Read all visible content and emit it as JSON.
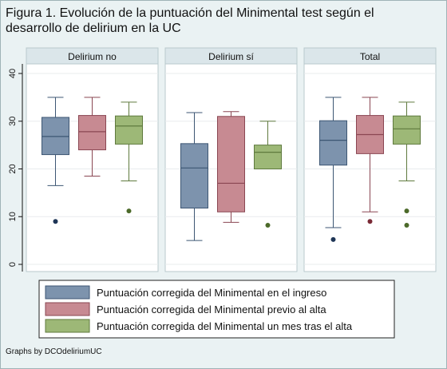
{
  "title_lines": [
    "Figura 1. Evolución de la puntuación del Minimental test según el",
    "desarrollo de delirium en la UC"
  ],
  "note": "Graphs by DCOdeliriumUC",
  "colors": {
    "page_bg": "#eaf2f3",
    "series": [
      "#7d93ad",
      "#c78a92",
      "#9db877"
    ],
    "box_edge": [
      "#3d5673",
      "#8a4652",
      "#5f7a3e"
    ],
    "outlier": [
      "#1e3556",
      "#7a2a36",
      "#4c6a2a"
    ]
  },
  "chart_data": {
    "type": "box",
    "title": "Figura 1. Evolución de la puntuación del Minimental test según el desarrollo de delirium en la UC",
    "xlabel": "",
    "ylabel": "",
    "ylim": [
      0,
      40
    ],
    "yticks": [
      0,
      10,
      20,
      30,
      40
    ],
    "grid": true,
    "legend_position": "bottom",
    "panels": [
      {
        "label": "Delirium no",
        "series": [
          {
            "name": "Puntuación corregida del Minimental en el ingreso",
            "whisker_low": 16.5,
            "q1": 23,
            "median": 26.8,
            "q3": 30.8,
            "whisker_high": 35,
            "outliers": [
              9
            ]
          },
          {
            "name": "Puntuación corregida del Minimental previo al alta",
            "whisker_low": 18.5,
            "q1": 24,
            "median": 27.8,
            "q3": 31.2,
            "whisker_high": 35,
            "outliers": []
          },
          {
            "name": "Puntuación corregida del Minimental un mes tras el alta",
            "whisker_low": 17.5,
            "q1": 25.2,
            "median": 29,
            "q3": 31.1,
            "whisker_high": 34,
            "outliers": [
              11.2
            ]
          }
        ]
      },
      {
        "label": "Delirium sí",
        "series": [
          {
            "name": "Puntuación corregida del Minimental en el ingreso",
            "whisker_low": 5,
            "q1": 11.8,
            "median": 20.2,
            "q3": 25.3,
            "whisker_high": 31.8,
            "outliers": []
          },
          {
            "name": "Puntuación corregida del Minimental previo al alta",
            "whisker_low": 8.8,
            "q1": 11,
            "median": 17,
            "q3": 31,
            "whisker_high": 32,
            "outliers": []
          },
          {
            "name": "Puntuación corregida del Minimental un mes tras el alta",
            "whisker_low": 20,
            "q1": 20,
            "median": 23.5,
            "q3": 25,
            "whisker_high": 30,
            "outliers": [
              8.2
            ]
          }
        ]
      },
      {
        "label": "Total",
        "series": [
          {
            "name": "Puntuación corregida del Minimental en el ingreso",
            "whisker_low": 7.7,
            "q1": 20.8,
            "median": 26,
            "q3": 30.1,
            "whisker_high": 35,
            "outliers": [
              5.2
            ]
          },
          {
            "name": "Puntuación corregida del Minimental previo al alta",
            "whisker_low": 11,
            "q1": 23.2,
            "median": 27.2,
            "q3": 31.2,
            "whisker_high": 35,
            "outliers": [
              9
            ]
          },
          {
            "name": "Puntuación corregida del Minimental un mes tras el alta",
            "whisker_low": 17.5,
            "q1": 25.2,
            "median": 28.4,
            "q3": 31.1,
            "whisker_high": 34,
            "outliers": [
              11.2,
              8.2
            ]
          }
        ]
      }
    ],
    "legend": [
      "Puntuación corregida del Minimental en el ingreso",
      "Puntuación corregida del Minimental previo al alta",
      "Puntuación corregida del Minimental un mes tras el alta"
    ]
  }
}
